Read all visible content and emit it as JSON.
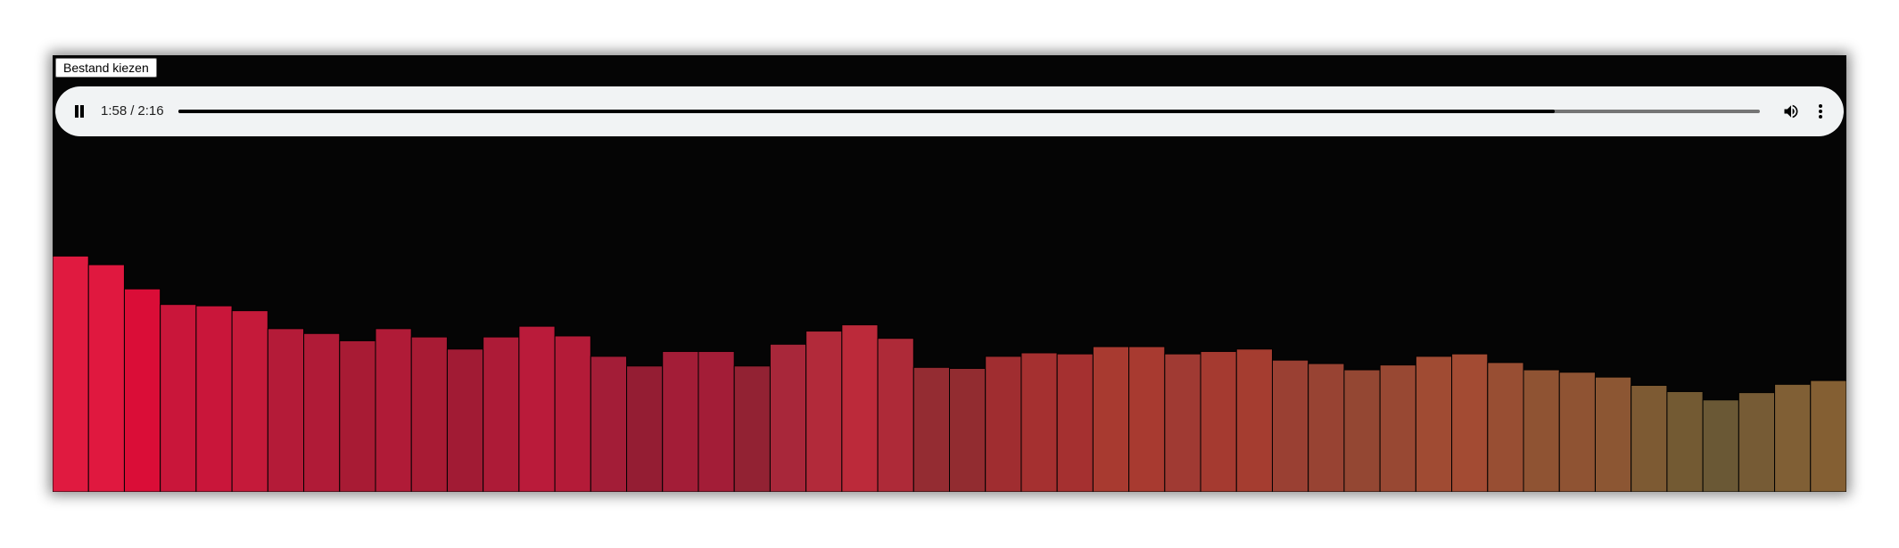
{
  "file_input": {
    "label": "Bestand kiezen"
  },
  "player": {
    "current_time": "1:58",
    "separator": "/",
    "duration": "2:16",
    "progress_fraction": 0.8701,
    "state": "playing",
    "play_pause_icon": "pause-icon",
    "volume_icon": "volume-icon",
    "menu_icon": "more-vert-icon",
    "track_color": "#757575",
    "fill_color": "#000000",
    "background": "#f1f3f4"
  },
  "visualizer": {
    "bar_levels": [
      0.682,
      0.657,
      0.587,
      0.542,
      0.538,
      0.524,
      0.472,
      0.458,
      0.437,
      0.472,
      0.448,
      0.413,
      0.448,
      0.479,
      0.451,
      0.392,
      0.364,
      0.406,
      0.406,
      0.364,
      0.427,
      0.465,
      0.483,
      0.444,
      0.36,
      0.357,
      0.392,
      0.402,
      0.399,
      0.42,
      0.42,
      0.399,
      0.406,
      0.413,
      0.381,
      0.371,
      0.353,
      0.367,
      0.392,
      0.399,
      0.374,
      0.353,
      0.346,
      0.332,
      0.308,
      0.29,
      0.266,
      0.287,
      0.311,
      0.322
    ],
    "bar_colors": [
      "#e01a40",
      "#e0183f",
      "#da0d37",
      "#c9163a",
      "#c9163a",
      "#c51a3a",
      "#b41b38",
      "#b01b37",
      "#a81b34",
      "#b01b37",
      "#a81b34",
      "#a11b34",
      "#ad1b37",
      "#ba1b3a",
      "#b41b38",
      "#a31d37",
      "#941d33",
      "#a31d37",
      "#a31d37",
      "#922233",
      "#a8273a",
      "#b22a3a",
      "#bc2a3a",
      "#ae2a38",
      "#942c32",
      "#922c30",
      "#a02d30",
      "#a53030",
      "#a53030",
      "#a83a30",
      "#a83a30",
      "#a03a33",
      "#a53a30",
      "#a53d30",
      "#9a4033",
      "#984333",
      "#944733",
      "#984833",
      "#a04b33",
      "#a34b33",
      "#984e33",
      "#8f5333",
      "#8f5333",
      "#8c5633",
      "#7d5a33",
      "#735a33",
      "#6a5835",
      "#765b35",
      "#805f35",
      "#845f33"
    ],
    "bar_edge_color": "#000000"
  }
}
